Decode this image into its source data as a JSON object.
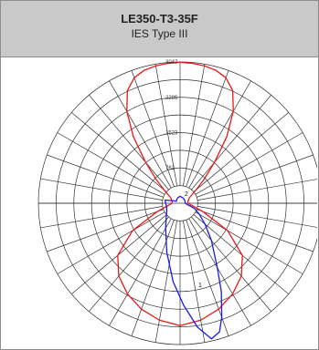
{
  "header": {
    "title": "LE350-T3-35F",
    "subtitle": "IES Type III"
  },
  "chart_data": {
    "type": "polar",
    "title": "LE350-T3-35F",
    "subtitle": "IES Type III",
    "radial_ticks": [
      "762",
      "1523",
      "2285",
      "3047"
    ],
    "radial_max": 3047,
    "angle_step_deg": 10,
    "series_markers": [
      "2",
      "1"
    ],
    "colors": {
      "series_1": "#1a1ae6",
      "series_2": "#e61a1a",
      "grid": "#333333"
    },
    "series": [
      {
        "marker": "2",
        "color": "#e61a1a",
        "points": [
          {
            "angle": 0,
            "value": 3040
          },
          {
            "angle": 5,
            "value": 3030
          },
          {
            "angle": 10,
            "value": 3010
          },
          {
            "angle": 15,
            "value": 2970
          },
          {
            "angle": 20,
            "value": 2880
          },
          {
            "angle": 25,
            "value": 2680
          },
          {
            "angle": 30,
            "value": 2290
          },
          {
            "angle": 35,
            "value": 1750
          },
          {
            "angle": 40,
            "value": 1150
          },
          {
            "angle": 45,
            "value": 730
          },
          {
            "angle": 50,
            "value": 450
          },
          {
            "angle": 55,
            "value": 300
          },
          {
            "angle": 60,
            "value": 230
          },
          {
            "angle": 70,
            "value": 190
          },
          {
            "angle": 80,
            "value": 170
          },
          {
            "angle": 90,
            "value": 175
          },
          {
            "angle": 100,
            "value": 250
          },
          {
            "angle": 110,
            "value": 520
          },
          {
            "angle": 120,
            "value": 1180
          },
          {
            "angle": 130,
            "value": 1750
          },
          {
            "angle": 140,
            "value": 2050
          },
          {
            "angle": 150,
            "value": 2260
          },
          {
            "angle": 160,
            "value": 2430
          },
          {
            "angle": 170,
            "value": 2560
          },
          {
            "angle": 180,
            "value": 2640
          },
          {
            "angle": 190,
            "value": 2560
          },
          {
            "angle": 200,
            "value": 2430
          },
          {
            "angle": 210,
            "value": 2260
          },
          {
            "angle": 220,
            "value": 2050
          },
          {
            "angle": 230,
            "value": 1750
          },
          {
            "angle": 240,
            "value": 1180
          },
          {
            "angle": 250,
            "value": 520
          },
          {
            "angle": 260,
            "value": 250
          },
          {
            "angle": 270,
            "value": 175
          },
          {
            "angle": 280,
            "value": 170
          },
          {
            "angle": 290,
            "value": 190
          },
          {
            "angle": 300,
            "value": 230
          },
          {
            "angle": 305,
            "value": 300
          },
          {
            "angle": 310,
            "value": 450
          },
          {
            "angle": 315,
            "value": 730
          },
          {
            "angle": 320,
            "value": 1150
          },
          {
            "angle": 325,
            "value": 1750
          },
          {
            "angle": 330,
            "value": 2290
          },
          {
            "angle": 335,
            "value": 2680
          },
          {
            "angle": 340,
            "value": 2880
          },
          {
            "angle": 345,
            "value": 2970
          },
          {
            "angle": 350,
            "value": 3010
          },
          {
            "angle": 355,
            "value": 3030
          }
        ]
      },
      {
        "marker": "1",
        "color": "#1a1ae6",
        "points": [
          {
            "angle": 0,
            "value": 150
          },
          {
            "angle": 30,
            "value": 130
          },
          {
            "angle": 60,
            "value": 120
          },
          {
            "angle": 80,
            "value": 110
          },
          {
            "angle": 90,
            "value": 110
          },
          {
            "angle": 100,
            "value": 160
          },
          {
            "angle": 110,
            "value": 330
          },
          {
            "angle": 120,
            "value": 480
          },
          {
            "angle": 130,
            "value": 700
          },
          {
            "angle": 140,
            "value": 1050
          },
          {
            "angle": 150,
            "value": 1600
          },
          {
            "angle": 155,
            "value": 2100
          },
          {
            "angle": 160,
            "value": 2620
          },
          {
            "angle": 163,
            "value": 2900
          },
          {
            "angle": 167,
            "value": 3000
          },
          {
            "angle": 172,
            "value": 2700
          },
          {
            "angle": 178,
            "value": 2200
          },
          {
            "angle": 185,
            "value": 1700
          },
          {
            "angle": 195,
            "value": 1100
          },
          {
            "angle": 210,
            "value": 620
          },
          {
            "angle": 225,
            "value": 420
          },
          {
            "angle": 240,
            "value": 330
          },
          {
            "angle": 255,
            "value": 300
          },
          {
            "angle": 270,
            "value": 310
          },
          {
            "angle": 282,
            "value": 330
          },
          {
            "angle": 290,
            "value": 160
          },
          {
            "angle": 300,
            "value": 90
          },
          {
            "angle": 320,
            "value": 110
          },
          {
            "angle": 340,
            "value": 130
          }
        ]
      }
    ],
    "grid": true
  }
}
